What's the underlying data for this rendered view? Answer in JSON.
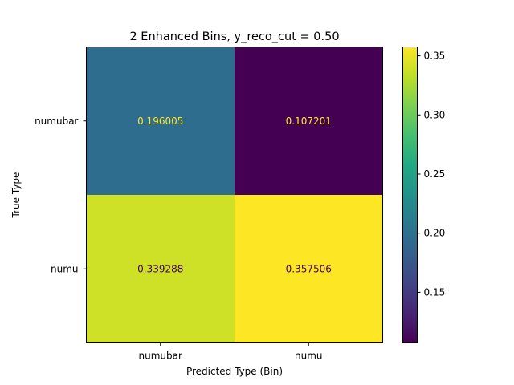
{
  "chart_data": {
    "type": "heatmap",
    "title": "2 Enhanced Bins, y_reco_cut = 0.50",
    "xlabel": "Predicted Type (Bin)",
    "ylabel": "True Type",
    "x_categories": [
      "numubar",
      "numu"
    ],
    "y_categories": [
      "numubar",
      "numu"
    ],
    "values": [
      [
        0.196005,
        0.107201
      ],
      [
        0.339288,
        0.357506
      ]
    ],
    "value_labels": [
      [
        "0.196005",
        "0.107201"
      ],
      [
        "0.339288",
        "0.357506"
      ]
    ],
    "colormap": "viridis",
    "colorbar": {
      "range": [
        0.107201,
        0.357506
      ],
      "ticks": [
        0.15,
        0.2,
        0.25,
        0.3,
        0.35
      ],
      "tick_labels": [
        "0.15",
        "0.20",
        "0.25",
        "0.30",
        "0.35"
      ]
    },
    "grid": false
  }
}
